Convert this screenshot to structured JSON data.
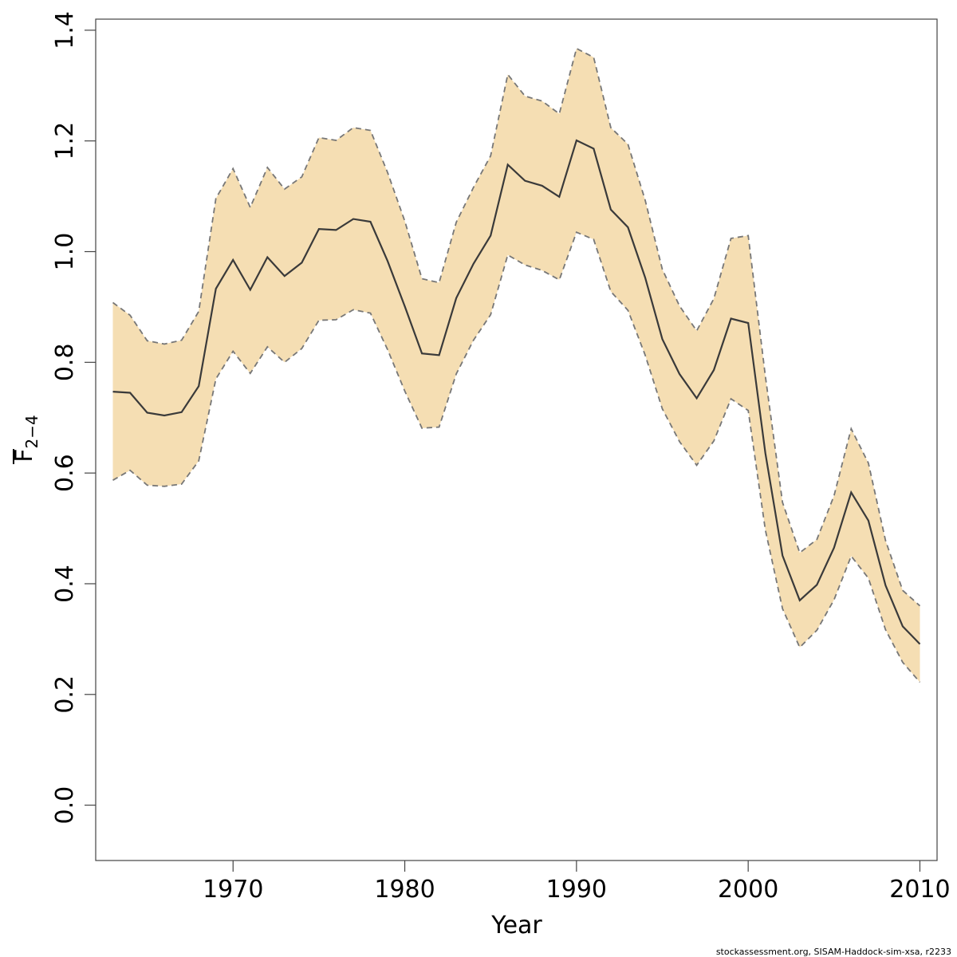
{
  "chart_data": {
    "type": "line",
    "xlabel": "Year",
    "ylabel_main": "F",
    "ylabel_sub": "2−4",
    "xlim": [
      1962,
      2011
    ],
    "ylim": [
      -0.1,
      1.42
    ],
    "xticks": [
      1970,
      1980,
      1990,
      2000,
      2010
    ],
    "yticks": [
      0.0,
      0.2,
      0.4,
      0.6,
      0.8,
      1.0,
      1.2,
      1.4
    ],
    "ytick_labels": [
      "0.0",
      "0.2",
      "0.4",
      "0.6",
      "0.8",
      "1.0",
      "1.2",
      "1.4"
    ],
    "x": [
      1963,
      1964,
      1965,
      1966,
      1967,
      1968,
      1969,
      1970,
      1971,
      1972,
      1973,
      1974,
      1975,
      1976,
      1977,
      1978,
      1979,
      1980,
      1981,
      1982,
      1983,
      1984,
      1985,
      1986,
      1987,
      1988,
      1989,
      1990,
      1991,
      1992,
      1993,
      1994,
      1995,
      1996,
      1997,
      1998,
      1999,
      2000,
      2001,
      2002,
      2003,
      2004,
      2005,
      2006,
      2007,
      2008,
      2009,
      2010
    ],
    "series": [
      {
        "values": [
          0.747,
          0.745,
          0.709,
          0.704,
          0.71,
          0.757,
          0.933,
          0.985,
          0.931,
          0.99,
          0.956,
          0.98,
          1.041,
          1.039,
          1.059,
          1.054,
          0.983,
          0.901,
          0.816,
          0.813,
          0.916,
          0.978,
          1.029,
          1.157,
          1.128,
          1.119,
          1.099,
          1.201,
          1.186,
          1.076,
          1.044,
          0.953,
          0.842,
          0.779,
          0.735,
          0.786,
          0.879,
          0.871,
          0.636,
          0.451,
          0.37,
          0.398,
          0.465,
          0.565,
          0.514,
          0.397,
          0.323,
          0.291
        ],
        "upper": [
          0.908,
          0.885,
          0.839,
          0.833,
          0.84,
          0.892,
          1.096,
          1.15,
          1.08,
          1.152,
          1.113,
          1.135,
          1.206,
          1.201,
          1.224,
          1.219,
          1.143,
          1.055,
          0.951,
          0.944,
          1.053,
          1.116,
          1.173,
          1.32,
          1.281,
          1.272,
          1.249,
          1.367,
          1.351,
          1.224,
          1.194,
          1.093,
          0.968,
          0.902,
          0.857,
          0.915,
          1.024,
          1.029,
          0.775,
          0.547,
          0.456,
          0.48,
          0.559,
          0.68,
          0.618,
          0.478,
          0.388,
          0.36
        ],
        "lower": [
          0.587,
          0.605,
          0.578,
          0.576,
          0.58,
          0.622,
          0.77,
          0.82,
          0.78,
          0.828,
          0.8,
          0.825,
          0.876,
          0.877,
          0.895,
          0.889,
          0.823,
          0.748,
          0.681,
          0.683,
          0.779,
          0.84,
          0.886,
          0.994,
          0.976,
          0.966,
          0.949,
          1.035,
          1.022,
          0.928,
          0.894,
          0.813,
          0.716,
          0.657,
          0.614,
          0.658,
          0.734,
          0.713,
          0.497,
          0.355,
          0.285,
          0.316,
          0.371,
          0.45,
          0.41,
          0.317,
          0.258,
          0.222
        ]
      }
    ],
    "colors": {
      "band_fill": "#f5deb3",
      "band_edge": "#777777",
      "line": "#3a3a3a",
      "axis": "#444444"
    },
    "grid": false
  },
  "footnote": "stockassessment.org, SISAM-Haddock-sim-xsa, r2233"
}
